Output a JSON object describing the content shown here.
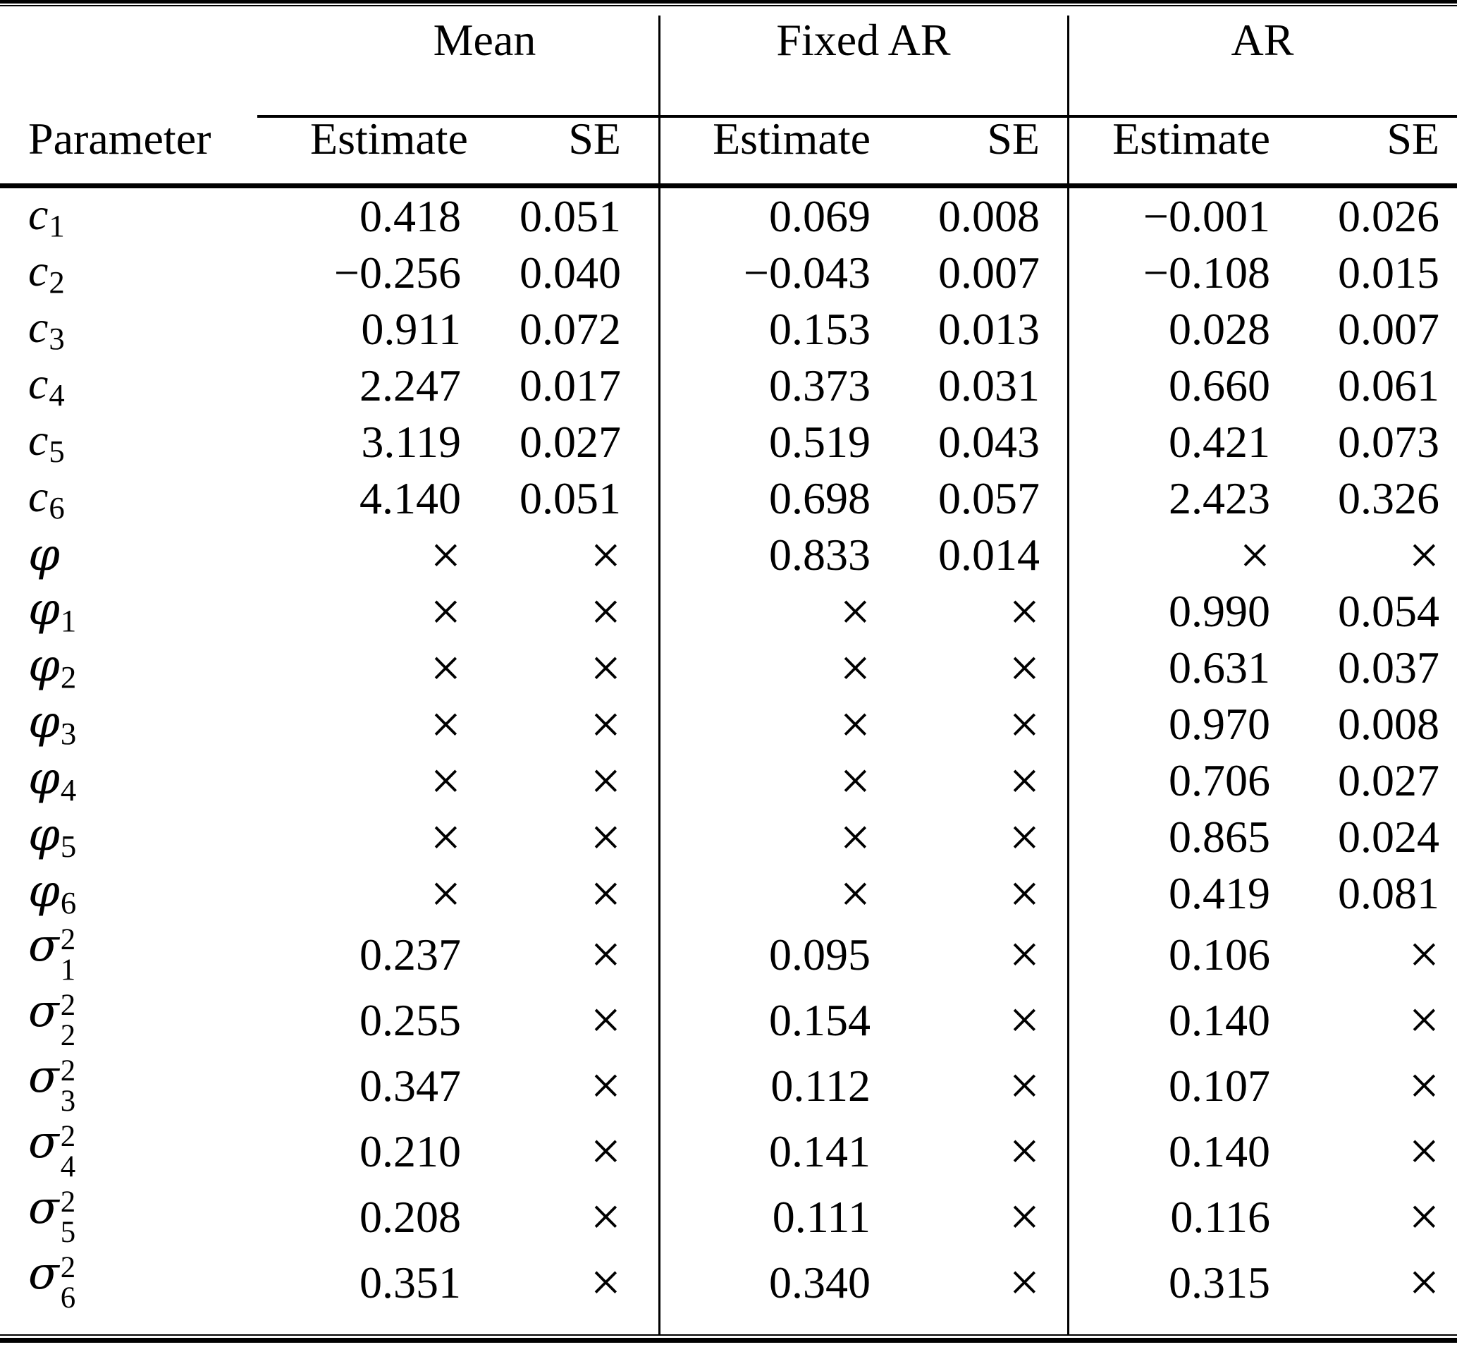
{
  "table": {
    "param_header": "Parameter",
    "col_groups": [
      {
        "label": "Mean"
      },
      {
        "label": "Fixed AR"
      },
      {
        "label": "AR"
      }
    ],
    "sub_headers": {
      "estimate": "Estimate",
      "se": "SE"
    },
    "times_symbol": "×",
    "param_symbols": {
      "c": "c",
      "phi": "φ",
      "sigma": "σ",
      "sigma_sup": "2"
    },
    "rows": [
      {
        "param": {
          "kind": "c",
          "sub": "1"
        },
        "cells": [
          "0.418",
          "0.051",
          "0.069",
          "0.008",
          "−0.001",
          "0.026"
        ]
      },
      {
        "param": {
          "kind": "c",
          "sub": "2"
        },
        "cells": [
          "−0.256",
          "0.040",
          "−0.043",
          "0.007",
          "−0.108",
          "0.015"
        ]
      },
      {
        "param": {
          "kind": "c",
          "sub": "3"
        },
        "cells": [
          "0.911",
          "0.072",
          "0.153",
          "0.013",
          "0.028",
          "0.007"
        ]
      },
      {
        "param": {
          "kind": "c",
          "sub": "4"
        },
        "cells": [
          "2.247",
          "0.017",
          "0.373",
          "0.031",
          "0.660",
          "0.061"
        ]
      },
      {
        "param": {
          "kind": "c",
          "sub": "5"
        },
        "cells": [
          "3.119",
          "0.027",
          "0.519",
          "0.043",
          "0.421",
          "0.073"
        ]
      },
      {
        "param": {
          "kind": "c",
          "sub": "6"
        },
        "cells": [
          "4.140",
          "0.051",
          "0.698",
          "0.057",
          "2.423",
          "0.326"
        ]
      },
      {
        "param": {
          "kind": "phi",
          "sub": ""
        },
        "cells": [
          "×",
          "×",
          "0.833",
          "0.014",
          "×",
          "×"
        ]
      },
      {
        "param": {
          "kind": "phi",
          "sub": "1"
        },
        "cells": [
          "×",
          "×",
          "×",
          "×",
          "0.990",
          "0.054"
        ]
      },
      {
        "param": {
          "kind": "phi",
          "sub": "2"
        },
        "cells": [
          "×",
          "×",
          "×",
          "×",
          "0.631",
          "0.037"
        ]
      },
      {
        "param": {
          "kind": "phi",
          "sub": "3"
        },
        "cells": [
          "×",
          "×",
          "×",
          "×",
          "0.970",
          "0.008"
        ]
      },
      {
        "param": {
          "kind": "phi",
          "sub": "4"
        },
        "cells": [
          "×",
          "×",
          "×",
          "×",
          "0.706",
          "0.027"
        ]
      },
      {
        "param": {
          "kind": "phi",
          "sub": "5"
        },
        "cells": [
          "×",
          "×",
          "×",
          "×",
          "0.865",
          "0.024"
        ]
      },
      {
        "param": {
          "kind": "phi",
          "sub": "6"
        },
        "cells": [
          "×",
          "×",
          "×",
          "×",
          "0.419",
          "0.081"
        ]
      },
      {
        "param": {
          "kind": "sigma2",
          "sub": "1"
        },
        "cells": [
          "0.237",
          "×",
          "0.095",
          "×",
          "0.106",
          "×"
        ]
      },
      {
        "param": {
          "kind": "sigma2",
          "sub": "2"
        },
        "cells": [
          "0.255",
          "×",
          "0.154",
          "×",
          "0.140",
          "×"
        ]
      },
      {
        "param": {
          "kind": "sigma2",
          "sub": "3"
        },
        "cells": [
          "0.347",
          "×",
          "0.112",
          "×",
          "0.107",
          "×"
        ]
      },
      {
        "param": {
          "kind": "sigma2",
          "sub": "4"
        },
        "cells": [
          "0.210",
          "×",
          "0.141",
          "×",
          "0.140",
          "×"
        ]
      },
      {
        "param": {
          "kind": "sigma2",
          "sub": "5"
        },
        "cells": [
          "0.208",
          "×",
          "0.111",
          "×",
          "0.116",
          "×"
        ]
      },
      {
        "param": {
          "kind": "sigma2",
          "sub": "6"
        },
        "cells": [
          "0.351",
          "×",
          "0.340",
          "×",
          "0.315",
          "×"
        ]
      }
    ]
  }
}
